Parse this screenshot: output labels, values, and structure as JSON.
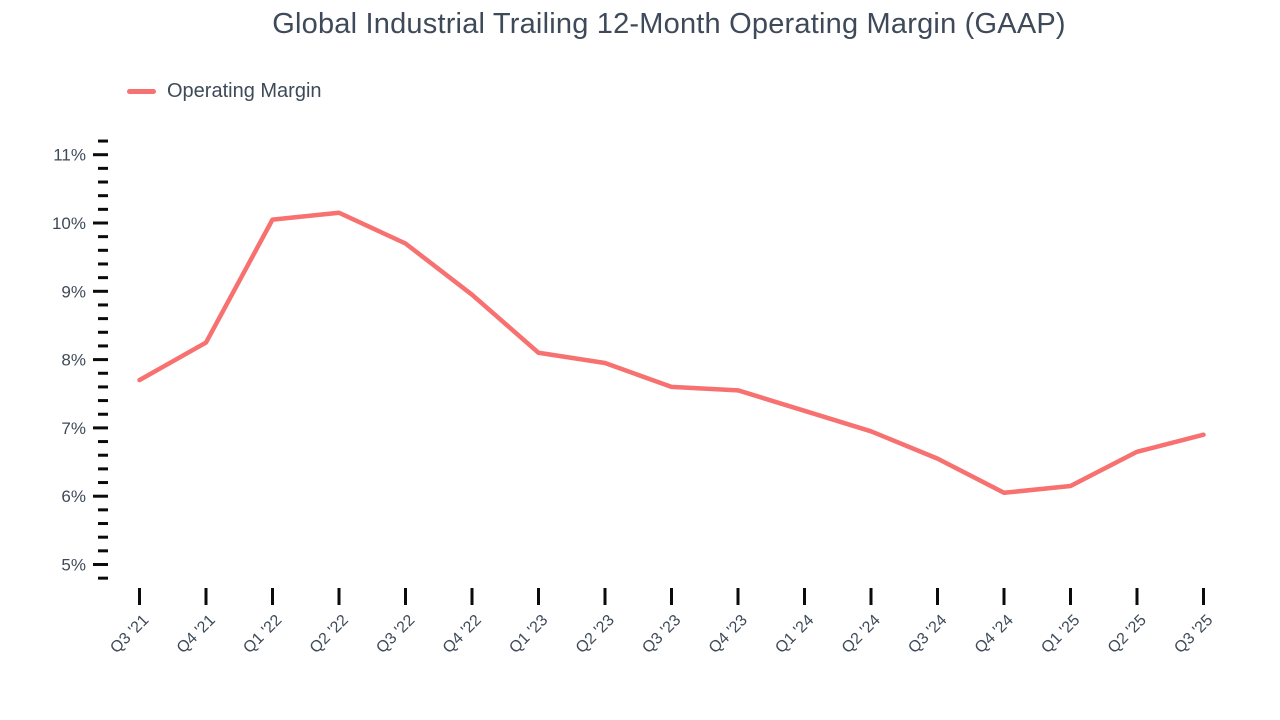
{
  "header": {
    "title": "Global Industrial Trailing 12-Month Operating Margin (GAAP)"
  },
  "legend": {
    "items": [
      {
        "label": "Operating Margin",
        "color": "#f87171"
      }
    ]
  },
  "chart_data": {
    "type": "line",
    "title": "Global Industrial Trailing 12-Month Operating Margin (GAAP)",
    "categories": [
      "Q3 '21",
      "Q4 '21",
      "Q1 '22",
      "Q2 '22",
      "Q3 '22",
      "Q4 '22",
      "Q1 '23",
      "Q2 '23",
      "Q3 '23",
      "Q4 '23",
      "Q1 '24",
      "Q2 '24",
      "Q3 '24",
      "Q4 '24",
      "Q1 '25",
      "Q2 '25",
      "Q3 '25"
    ],
    "series": [
      {
        "name": "Operating Margin",
        "color": "#f87171",
        "values": [
          7.7,
          8.25,
          10.05,
          10.15,
          9.7,
          8.95,
          8.1,
          7.95,
          7.6,
          7.55,
          7.25,
          6.95,
          6.55,
          6.05,
          6.15,
          6.65,
          6.9
        ]
      }
    ],
    "xlabel": "",
    "ylabel": "",
    "y_axis": {
      "min": 5,
      "max": 11,
      "major_step": 1,
      "minor_step": 0.2,
      "minor_min": 4.8,
      "minor_max": 11.2,
      "unit": "%",
      "tick_labels": [
        "5%",
        "6%",
        "7%",
        "8%",
        "9%",
        "10%",
        "11%"
      ]
    },
    "x_axis": {
      "label_rotation_deg": -45
    },
    "grid": false,
    "axis_lines": false,
    "legend_position": "top-left",
    "colors": {
      "line": "#f87171",
      "text": "#3e4a59",
      "tick": "#0b0b0b",
      "background": "#ffffff"
    }
  }
}
